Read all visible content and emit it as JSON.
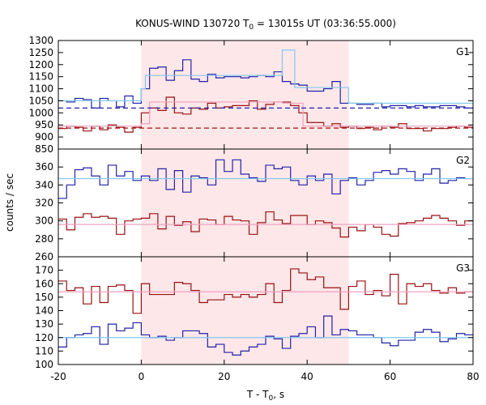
{
  "chart_data": {
    "type": "line",
    "title": {
      "prefix": "KONUS-WIND 130720 T",
      "sub": "0",
      "suffix": " = 13015s UT (03:36:55.000)"
    },
    "xlabel": {
      "prefix": "T - T",
      "sub": "0",
      "suffix": ", s"
    },
    "ylabel": "counts / sec",
    "xlim": [
      -20,
      80
    ],
    "x_ticks": [
      "-20",
      "0",
      "20",
      "40",
      "60",
      "80"
    ],
    "shaded_interval": [
      0,
      50
    ],
    "colors": {
      "shade": "#fde7e9",
      "blue": "#2222aa",
      "red": "#991111",
      "light_blue": "#7ec8ef",
      "pink": "#f0a0c0",
      "dash_blue": "#2222aa",
      "dash_red": "#aa1111"
    },
    "panels": [
      {
        "label": "G1",
        "ylim": [
          850,
          1300
        ],
        "y_ticks": [
          "850",
          "900",
          "950",
          "1000",
          "1050",
          "1100",
          "1150",
          "1200",
          "1250",
          "1300"
        ],
        "series": [
          {
            "color": "blue",
            "kind": "step",
            "x": [
              -20,
              -18,
              -16,
              -14,
              -12,
              -10,
              -8,
              -6,
              -4,
              -2,
              0,
              2,
              4,
              6,
              8,
              10,
              12,
              14,
              16,
              18,
              20,
              22,
              24,
              26,
              28,
              30,
              32,
              34,
              36,
              38,
              40,
              42,
              44,
              46,
              48,
              50,
              52,
              54,
              56,
              58,
              60,
              62,
              64,
              66,
              68,
              70,
              72,
              74,
              76,
              78
            ],
            "y": [
              1050,
              1045,
              1060,
              1055,
              1020,
              1060,
              1050,
              1025,
              1070,
              1040,
              1100,
              1185,
              1190,
              1135,
              1175,
              1220,
              1140,
              1130,
              1160,
              1145,
              1150,
              1150,
              1145,
              1150,
              1155,
              1150,
              1170,
              1130,
              1120,
              1115,
              1090,
              1090,
              1100,
              1130,
              1040,
              1040,
              1035,
              1035,
              1040,
              1025,
              1030,
              1030,
              1025,
              1030,
              1025,
              1025,
              1030,
              1030,
              1025,
              1020
            ]
          },
          {
            "color": "red",
            "kind": "step",
            "x": [
              -20,
              -18,
              -16,
              -14,
              -12,
              -10,
              -8,
              -6,
              -4,
              -2,
              0,
              2,
              4,
              6,
              8,
              10,
              12,
              14,
              16,
              18,
              20,
              22,
              24,
              26,
              28,
              30,
              32,
              34,
              36,
              38,
              40,
              42,
              44,
              46,
              48,
              50,
              52,
              54,
              56,
              58,
              60,
              62,
              64,
              66,
              68,
              70,
              72,
              74,
              76,
              78
            ],
            "y": [
              935,
              945,
              940,
              925,
              945,
              930,
              950,
              940,
              920,
              940,
              1000,
              1020,
              1010,
              1065,
              1000,
              995,
              1020,
              1015,
              1040,
              1020,
              1025,
              1030,
              1030,
              1050,
              1015,
              1035,
              1045,
              1045,
              1030,
              1000,
              960,
              960,
              945,
              955,
              940,
              945,
              935,
              940,
              930,
              945,
              940,
              955,
              935,
              935,
              925,
              935,
              935,
              940,
              945,
              940
            ]
          },
          {
            "color": "light_blue",
            "kind": "step",
            "x": [
              -20,
              0,
              1,
              34,
              37,
              49,
              50,
              80
            ],
            "y": [
              1050,
              1100,
              1155,
              1260,
              1105,
              1105,
              1040,
              1040
            ]
          },
          {
            "color": "pink",
            "kind": "step",
            "x": [
              -20,
              0,
              2,
              34,
              39,
              50,
              80
            ],
            "y": [
              945,
              955,
              1045,
              1040,
              945,
              945,
              945
            ]
          },
          {
            "color": "dash_blue",
            "kind": "dashed",
            "x": [
              -20,
              80
            ],
            "y": [
              1020,
              1020
            ]
          },
          {
            "color": "dash_red",
            "kind": "dashed",
            "x": [
              -20,
              80
            ],
            "y": [
              937,
              937
            ]
          }
        ]
      },
      {
        "label": "G2",
        "ylim": [
          260,
          380
        ],
        "y_ticks": [
          "260",
          "280",
          "300",
          "320",
          "340",
          "360"
        ],
        "series": [
          {
            "color": "blue",
            "kind": "step",
            "x": [
              -20,
              -18,
              -16,
              -14,
              -12,
              -10,
              -8,
              -6,
              -4,
              -2,
              0,
              2,
              4,
              6,
              8,
              10,
              12,
              14,
              16,
              18,
              20,
              22,
              24,
              26,
              28,
              30,
              32,
              34,
              36,
              38,
              40,
              42,
              44,
              46,
              48,
              50,
              52,
              54,
              56,
              58,
              60,
              62,
              64,
              66,
              68,
              70,
              72,
              74,
              76,
              78
            ],
            "y": [
              325,
              340,
              357,
              359,
              350,
              340,
              362,
              350,
              355,
              345,
              350,
              345,
              358,
              335,
              356,
              332,
              350,
              348,
              340,
              368,
              355,
              368,
              352,
              348,
              344,
              362,
              358,
              360,
              345,
              340,
              350,
              345,
              352,
              330,
              345,
              348,
              340,
              345,
              354,
              356,
              352,
              358,
              355,
              345,
              352,
              358,
              342,
              345,
              348,
              347
            ]
          },
          {
            "color": "red",
            "kind": "step",
            "x": [
              -20,
              -18,
              -16,
              -14,
              -12,
              -10,
              -8,
              -6,
              -4,
              -2,
              0,
              2,
              4,
              6,
              8,
              10,
              12,
              14,
              16,
              18,
              20,
              22,
              24,
              26,
              28,
              30,
              32,
              34,
              36,
              38,
              40,
              42,
              44,
              46,
              48,
              50,
              52,
              54,
              56,
              58,
              60,
              62,
              64,
              66,
              68,
              70,
              72,
              74,
              76,
              78
            ],
            "y": [
              302,
              290,
              304,
              308,
              304,
              305,
              303,
              285,
              300,
              302,
              303,
              308,
              291,
              305,
              295,
              299,
              288,
              302,
              301,
              296,
              305,
              301,
              300,
              285,
              298,
              310,
              301,
              297,
              306,
              306,
              296,
              300,
              298,
              292,
              282,
              293,
              289,
              296,
              293,
              285,
              283,
              297,
              298,
              300,
              303,
              306,
              303,
              300,
              295,
              300
            ]
          },
          {
            "color": "light_blue",
            "kind": "step",
            "x": [
              -20,
              80
            ],
            "y": [
              347,
              347
            ]
          },
          {
            "color": "pink",
            "kind": "step",
            "x": [
              -20,
              80
            ],
            "y": [
              296,
              296
            ]
          }
        ]
      },
      {
        "label": "G3",
        "ylim": [
          100,
          180
        ],
        "y_ticks": [
          "100",
          "110",
          "120",
          "130",
          "140",
          "150",
          "160",
          "170"
        ],
        "series": [
          {
            "color": "blue",
            "kind": "step",
            "x": [
              -20,
              -18,
              -16,
              -14,
              -12,
              -10,
              -8,
              -6,
              -4,
              -2,
              0,
              2,
              4,
              6,
              8,
              10,
              12,
              14,
              16,
              18,
              20,
              22,
              24,
              26,
              28,
              30,
              32,
              34,
              36,
              38,
              40,
              42,
              44,
              46,
              48,
              50,
              52,
              54,
              56,
              58,
              60,
              62,
              64,
              66,
              68,
              70,
              72,
              74,
              76,
              78
            ],
            "y": [
              113,
              120,
              122,
              123,
              128,
              115,
              130,
              125,
              127,
              131,
              122,
              120,
              121,
              118,
              120,
              125,
              125,
              123,
              113,
              115,
              109,
              107,
              110,
              113,
              115,
              121,
              119,
              112,
              121,
              123,
              128,
              120,
              136,
              122,
              126,
              125,
              122,
              122,
              120,
              116,
              114,
              118,
              118,
              124,
              126,
              124,
              117,
              119,
              123,
              122
            ]
          },
          {
            "color": "red",
            "kind": "step",
            "x": [
              -20,
              -18,
              -16,
              -14,
              -12,
              -10,
              -8,
              -6,
              -4,
              -2,
              0,
              2,
              4,
              6,
              8,
              10,
              12,
              14,
              16,
              18,
              20,
              22,
              24,
              26,
              28,
              30,
              32,
              34,
              36,
              38,
              40,
              42,
              44,
              46,
              48,
              50,
              52,
              54,
              56,
              58,
              60,
              62,
              64,
              66,
              68,
              70,
              72,
              74,
              76,
              78
            ],
            "y": [
              162,
              155,
              157,
              145,
              158,
              146,
              158,
              159,
              155,
              138,
              160,
              152,
              152,
              152,
              161,
              160,
              155,
              146,
              148,
              148,
              152,
              150,
              152,
              150,
              152,
              160,
              146,
              155,
              171,
              168,
              163,
              165,
              157,
              157,
              141,
              158,
              162,
              152,
              155,
              151,
              167,
              145,
              160,
              158,
              160,
              155,
              153,
              157,
              153,
              154
            ]
          },
          {
            "color": "light_blue",
            "kind": "step",
            "x": [
              -20,
              80
            ],
            "y": [
              120,
              120
            ]
          },
          {
            "color": "pink",
            "kind": "step",
            "x": [
              -20,
              80
            ],
            "y": [
              154,
              154
            ]
          }
        ]
      }
    ]
  }
}
